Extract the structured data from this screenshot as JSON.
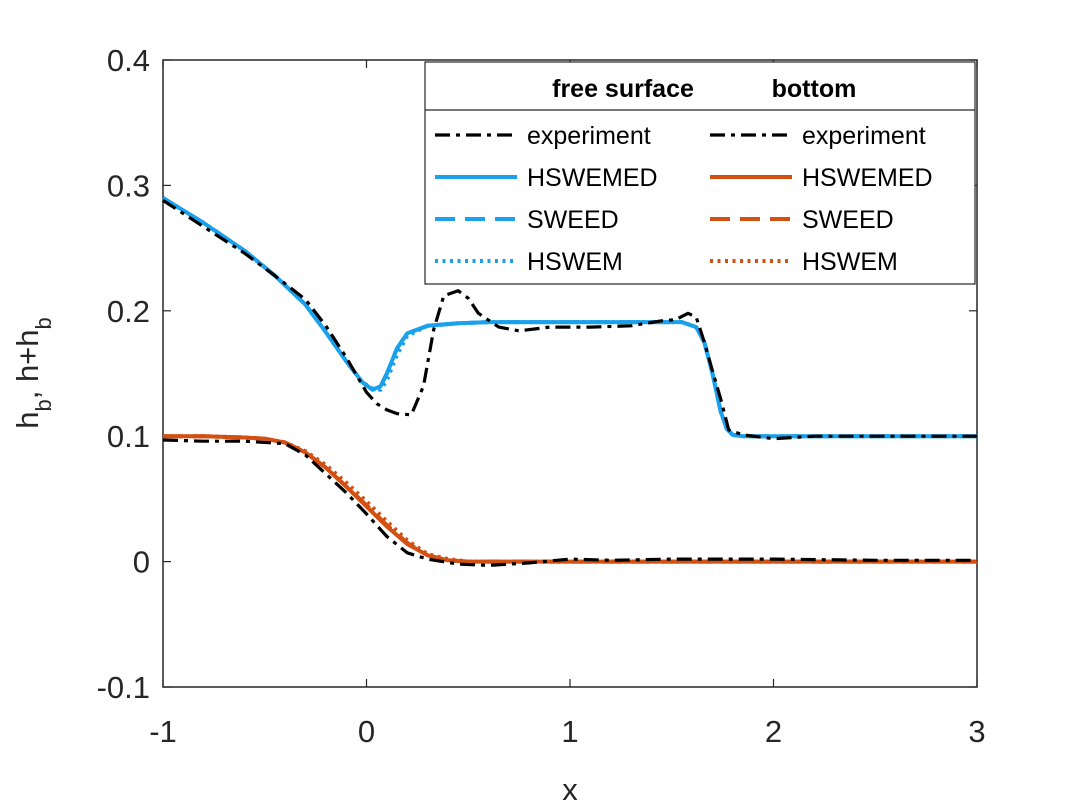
{
  "colors": {
    "experiment": "#000000",
    "free_surface": "#1ba1ec",
    "bottom": "#d35013",
    "axis": "#262626"
  },
  "chart_data": {
    "type": "line",
    "title": "",
    "xlabel": "x",
    "ylabel": {
      "h_base": "h",
      "h_sub": "b",
      "sep": ", h+h",
      "hh_sub": "b"
    },
    "xlim": [
      -1,
      3
    ],
    "ylim": [
      -0.1,
      0.4
    ],
    "xticks": [
      -1,
      0,
      1,
      2,
      3
    ],
    "xtick_labels": [
      "-1",
      "0",
      "1",
      "2",
      "3"
    ],
    "yticks": [
      -0.1,
      0,
      0.1,
      0.2,
      0.3,
      0.4
    ],
    "ytick_labels": [
      "-0.1",
      "0",
      "0.1",
      "0.2",
      "0.3",
      "0.4"
    ],
    "legend": {
      "location": "top-right",
      "headers": [
        "free surface",
        "bottom"
      ],
      "entries": [
        {
          "group": "free surface",
          "label": "experiment",
          "style": "dashdot",
          "color": "#000000"
        },
        {
          "group": "free surface",
          "label": "HSWEMED",
          "style": "solid",
          "color": "#1ba1ec"
        },
        {
          "group": "free surface",
          "label": "SWEED",
          "style": "dashed",
          "color": "#1ba1ec"
        },
        {
          "group": "free surface",
          "label": "HSWEM",
          "style": "dotted",
          "color": "#1ba1ec"
        },
        {
          "group": "bottom",
          "label": "experiment",
          "style": "dashdot",
          "color": "#000000"
        },
        {
          "group": "bottom",
          "label": "HSWEMED",
          "style": "solid",
          "color": "#d35013"
        },
        {
          "group": "bottom",
          "label": "SWEED",
          "style": "dashed",
          "color": "#d35013"
        },
        {
          "group": "bottom",
          "label": "HSWEM",
          "style": "dotted",
          "color": "#d35013"
        }
      ]
    },
    "series": [
      {
        "name": "experiment (free surface)",
        "group": "free surface",
        "style": "dashdot",
        "color": "#000000",
        "x": [
          -1,
          -0.8,
          -0.6,
          -0.45,
          -0.3,
          -0.2,
          -0.1,
          0,
          0.05,
          0.1,
          0.15,
          0.22,
          0.28,
          0.33,
          0.38,
          0.45,
          0.5,
          0.55,
          0.65,
          0.75,
          0.9,
          1.1,
          1.3,
          1.45,
          1.52,
          1.58,
          1.62,
          1.66,
          1.7,
          1.74,
          1.78,
          1.85,
          2,
          2.2,
          2.5,
          3
        ],
        "y": [
          0.288,
          0.267,
          0.246,
          0.228,
          0.209,
          0.188,
          0.163,
          0.135,
          0.126,
          0.121,
          0.118,
          0.117,
          0.14,
          0.185,
          0.212,
          0.216,
          0.21,
          0.198,
          0.187,
          0.184,
          0.187,
          0.187,
          0.188,
          0.192,
          0.193,
          0.198,
          0.195,
          0.175,
          0.152,
          0.13,
          0.105,
          0.101,
          0.098,
          0.1,
          0.1,
          0.1
        ]
      },
      {
        "name": "HSWEMED (free surface)",
        "group": "free surface",
        "style": "solid",
        "color": "#1ba1ec",
        "x": [
          -1,
          -0.8,
          -0.6,
          -0.45,
          -0.3,
          -0.2,
          -0.1,
          -0.02,
          0.03,
          0.07,
          0.1,
          0.15,
          0.2,
          0.3,
          0.45,
          0.6,
          0.8,
          1,
          1.2,
          1.4,
          1.55,
          1.62,
          1.66,
          1.7,
          1.74,
          1.77,
          1.8,
          1.85,
          1.9,
          2,
          2.5,
          3
        ],
        "y": [
          0.29,
          0.27,
          0.248,
          0.228,
          0.205,
          0.183,
          0.16,
          0.143,
          0.137,
          0.14,
          0.15,
          0.17,
          0.182,
          0.188,
          0.19,
          0.191,
          0.191,
          0.191,
          0.191,
          0.191,
          0.191,
          0.187,
          0.175,
          0.15,
          0.12,
          0.106,
          0.101,
          0.1,
          0.1,
          0.1,
          0.1,
          0.1
        ]
      },
      {
        "name": "SWEED (free surface)",
        "group": "free surface",
        "style": "dashed",
        "color": "#1ba1ec",
        "x": [
          -1,
          -0.8,
          -0.6,
          -0.45,
          -0.3,
          -0.2,
          -0.1,
          -0.02,
          0.03,
          0.07,
          0.1,
          0.15,
          0.2,
          0.3,
          0.45,
          0.6,
          0.8,
          1,
          1.2,
          1.4,
          1.55,
          1.62,
          1.66,
          1.7,
          1.74,
          1.77,
          1.8,
          1.85,
          1.9,
          2,
          2.5,
          3
        ],
        "y": [
          0.29,
          0.27,
          0.248,
          0.228,
          0.205,
          0.183,
          0.16,
          0.143,
          0.137,
          0.14,
          0.15,
          0.17,
          0.182,
          0.188,
          0.19,
          0.191,
          0.191,
          0.191,
          0.191,
          0.191,
          0.191,
          0.187,
          0.175,
          0.15,
          0.12,
          0.106,
          0.101,
          0.1,
          0.1,
          0.1,
          0.1,
          0.1
        ]
      },
      {
        "name": "HSWEM (free surface)",
        "group": "free surface",
        "style": "dotted",
        "color": "#1ba1ec",
        "x": [
          -1,
          -0.8,
          -0.6,
          -0.45,
          -0.3,
          -0.2,
          -0.1,
          -0.02,
          0.03,
          0.07,
          0.1,
          0.15,
          0.2,
          0.3,
          0.45,
          0.6,
          0.8,
          1,
          1.2,
          1.4,
          1.55,
          1.62,
          1.66,
          1.7,
          1.74,
          1.77,
          1.8,
          1.85,
          1.9,
          2,
          2.5,
          3
        ],
        "y": [
          0.29,
          0.27,
          0.248,
          0.228,
          0.205,
          0.183,
          0.16,
          0.143,
          0.138,
          0.137,
          0.145,
          0.165,
          0.18,
          0.188,
          0.19,
          0.191,
          0.191,
          0.191,
          0.191,
          0.191,
          0.191,
          0.187,
          0.175,
          0.15,
          0.12,
          0.106,
          0.101,
          0.1,
          0.1,
          0.1,
          0.1,
          0.1
        ]
      },
      {
        "name": "experiment (bottom)",
        "group": "bottom",
        "style": "dashdot",
        "color": "#000000",
        "x": [
          -1,
          -0.8,
          -0.6,
          -0.4,
          -0.3,
          -0.2,
          -0.1,
          0,
          0.1,
          0.2,
          0.3,
          0.45,
          0.6,
          0.8,
          1,
          1.2,
          1.5,
          2,
          2.5,
          3
        ],
        "y": [
          0.097,
          0.096,
          0.096,
          0.094,
          0.085,
          0.07,
          0.055,
          0.038,
          0.02,
          0.007,
          0.002,
          -0.002,
          -0.003,
          -0.001,
          0.002,
          0.001,
          0.002,
          0.002,
          0.001,
          0.001
        ]
      },
      {
        "name": "HSWEMED (bottom)",
        "group": "bottom",
        "style": "solid",
        "color": "#d35013",
        "x": [
          -1,
          -0.8,
          -0.6,
          -0.5,
          -0.4,
          -0.3,
          -0.2,
          -0.1,
          0,
          0.1,
          0.2,
          0.3,
          0.4,
          0.5,
          0.7,
          1,
          2,
          3
        ],
        "y": [
          0.1,
          0.1,
          0.099,
          0.098,
          0.095,
          0.087,
          0.075,
          0.06,
          0.044,
          0.028,
          0.014,
          0.005,
          0.001,
          0,
          0,
          0,
          0,
          0
        ]
      },
      {
        "name": "SWEED (bottom)",
        "group": "bottom",
        "style": "dashed",
        "color": "#d35013",
        "x": [
          -1,
          -0.8,
          -0.6,
          -0.5,
          -0.4,
          -0.3,
          -0.2,
          -0.1,
          0,
          0.1,
          0.2,
          0.3,
          0.4,
          0.5,
          0.7,
          1,
          2,
          3
        ],
        "y": [
          0.1,
          0.1,
          0.099,
          0.098,
          0.095,
          0.087,
          0.075,
          0.06,
          0.045,
          0.029,
          0.015,
          0.005,
          0.001,
          0,
          0,
          0,
          0,
          0
        ]
      },
      {
        "name": "HSWEM (bottom)",
        "group": "bottom",
        "style": "dotted",
        "color": "#d35013",
        "x": [
          -1,
          -0.8,
          -0.6,
          -0.5,
          -0.4,
          -0.3,
          -0.2,
          -0.1,
          0,
          0.1,
          0.2,
          0.3,
          0.4,
          0.5,
          0.7,
          1,
          2,
          3
        ],
        "y": [
          0.1,
          0.1,
          0.099,
          0.098,
          0.095,
          0.088,
          0.077,
          0.063,
          0.048,
          0.032,
          0.017,
          0.006,
          0.002,
          0,
          0,
          0,
          0,
          0
        ]
      }
    ]
  }
}
